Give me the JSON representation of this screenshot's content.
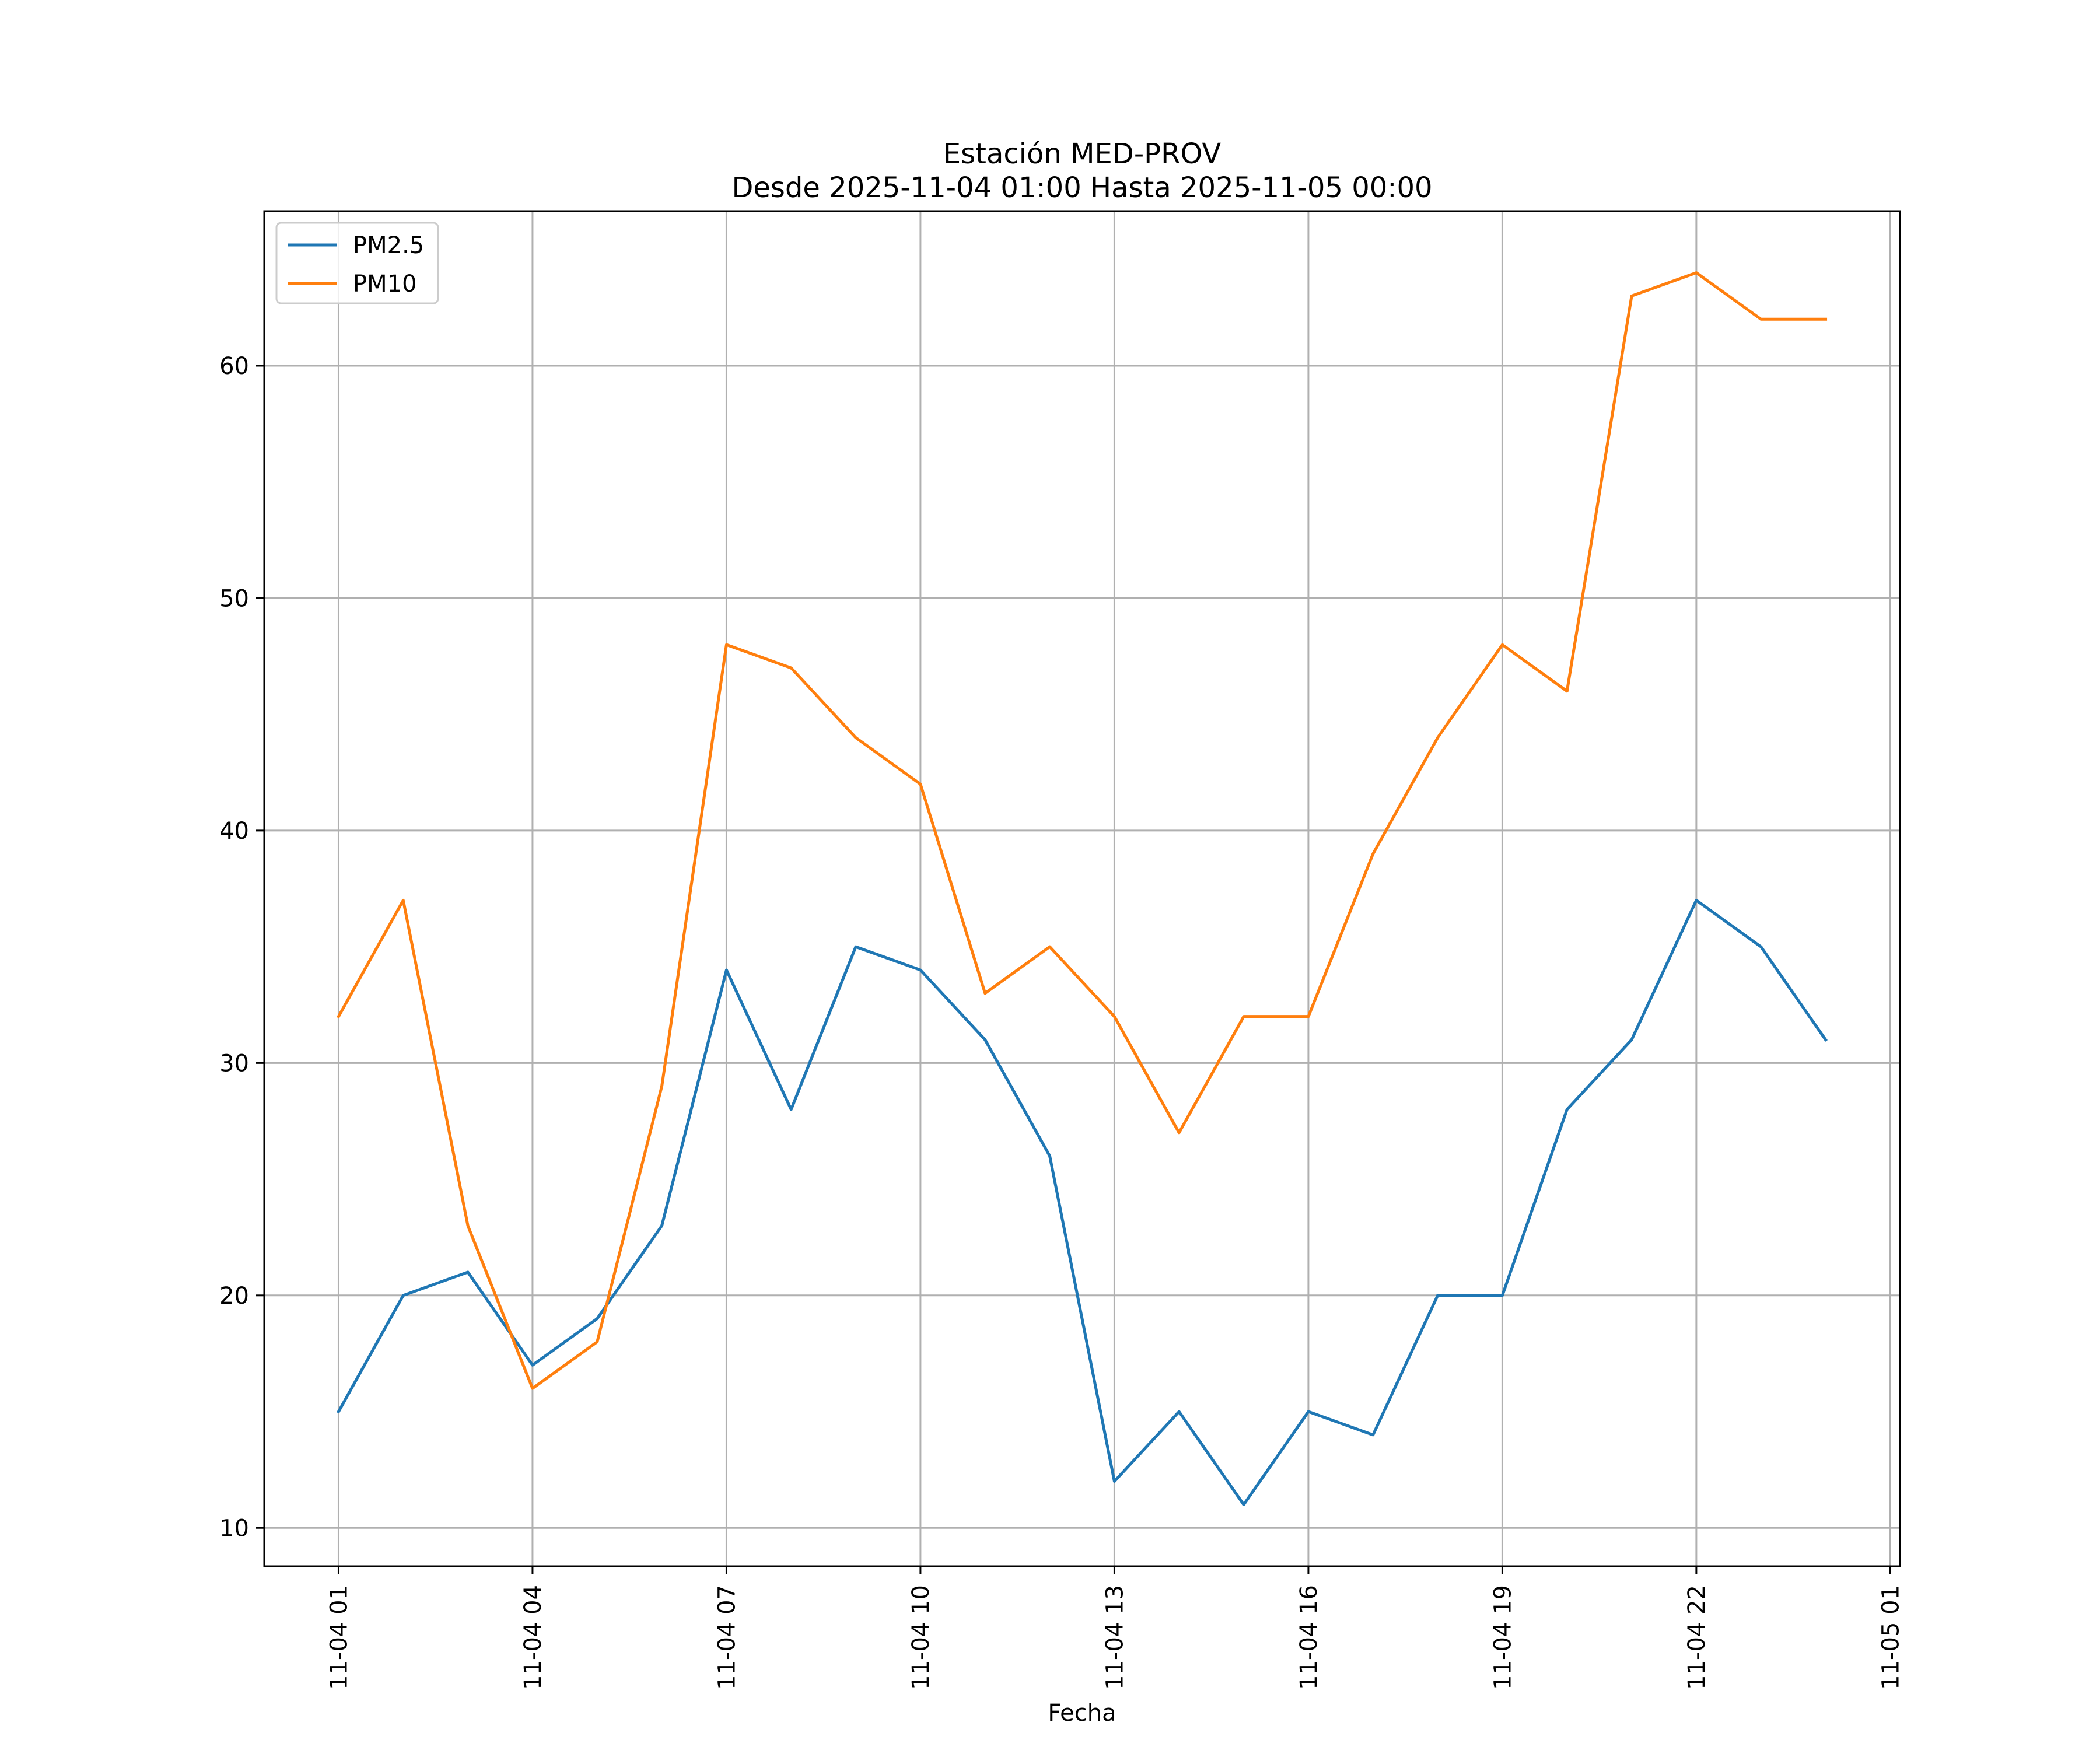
{
  "chart_data": {
    "type": "line",
    "title": "Estación MED-PROV",
    "subtitle": "Desde 2025-11-04 01:00 Hasta 2025-11-05 00:00",
    "xlabel": "Fecha",
    "ylabel": "",
    "x_hours": [
      1,
      2,
      3,
      4,
      5,
      6,
      7,
      8,
      9,
      10,
      11,
      12,
      13,
      14,
      15,
      16,
      17,
      18,
      19,
      20,
      21,
      22,
      23,
      24
    ],
    "xlim": [
      -0.15,
      25.15
    ],
    "ylim": [
      8.35,
      66.65
    ],
    "x_ticks": [
      {
        "hour": 1,
        "label": "11-04 01"
      },
      {
        "hour": 4,
        "label": "11-04 04"
      },
      {
        "hour": 7,
        "label": "11-04 07"
      },
      {
        "hour": 10,
        "label": "11-04 10"
      },
      {
        "hour": 13,
        "label": "11-04 13"
      },
      {
        "hour": 16,
        "label": "11-04 16"
      },
      {
        "hour": 19,
        "label": "11-04 19"
      },
      {
        "hour": 22,
        "label": "11-04 22"
      },
      {
        "hour": 25,
        "label": "11-05 01"
      }
    ],
    "y_ticks": [
      {
        "value": 10,
        "label": "10"
      },
      {
        "value": 20,
        "label": "20"
      },
      {
        "value": 30,
        "label": "30"
      },
      {
        "value": 40,
        "label": "40"
      },
      {
        "value": 50,
        "label": "50"
      },
      {
        "value": 60,
        "label": "60"
      }
    ],
    "grid": true,
    "legend_position": "top-left",
    "series": [
      {
        "name": "PM2.5",
        "color": "#1f77b4",
        "values": [
          15,
          20,
          21,
          17,
          19,
          23,
          34,
          28,
          35,
          34,
          31,
          26,
          12,
          15,
          11,
          15,
          14,
          20,
          20,
          28,
          31,
          37,
          35,
          31
        ]
      },
      {
        "name": "PM10",
        "color": "#ff7f0e",
        "values": [
          32,
          37,
          23,
          16,
          18,
          29,
          48,
          47,
          44,
          42,
          33,
          35,
          32,
          27,
          32,
          32,
          39,
          44,
          48,
          46,
          63,
          64,
          62,
          62
        ]
      }
    ]
  }
}
